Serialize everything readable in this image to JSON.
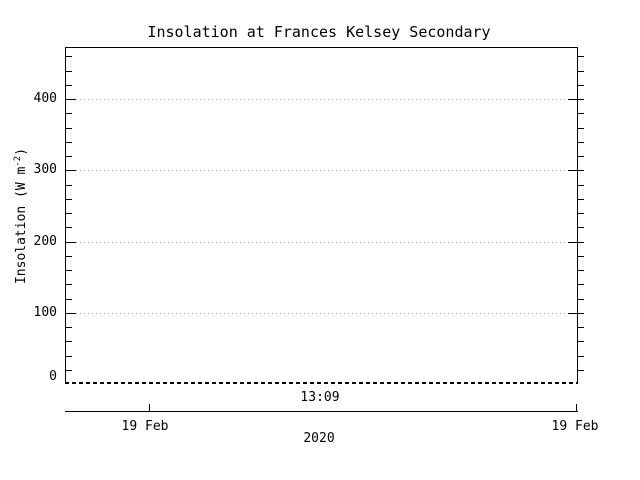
{
  "title": "Insolation at Frances Kelsey Secondary",
  "y_axis": {
    "label_prefix": "Insolation (W m",
    "label_exponent": "-2",
    "label_suffix": ")",
    "tick_values": [
      0,
      100,
      200,
      300,
      400
    ],
    "minor_tick_step": 20,
    "max_value": 470
  },
  "x_axis": {
    "time_label": "13:09",
    "date_label_left": "19 Feb",
    "date_label_right": "19 Feb",
    "year_label": "2020"
  },
  "colors": {
    "axis": "#000000",
    "gridline": "#b0b0b0",
    "background": "#ffffff"
  },
  "chart_data": {
    "type": "line",
    "title": "Insolation at Frances Kelsey Secondary",
    "xlabel": "2020",
    "ylabel": "Insolation (W m^-2)",
    "ylim": [
      0,
      470
    ],
    "y_ticks": [
      0,
      100,
      200,
      300,
      400
    ],
    "y_minor_tick_interval": 20,
    "x_tick_labels": [
      "13:09"
    ],
    "date_axis_labels": [
      "19 Feb",
      "19 Feb"
    ],
    "grid": "horizontal dotted lines at major y ticks",
    "legend": "none",
    "series": [
      {
        "name": "Insolation",
        "style": "dashed",
        "values": [
          0,
          0
        ],
        "note": "flat dashed line at 0 W m^-2 along the baseline for the whole time window"
      }
    ]
  }
}
